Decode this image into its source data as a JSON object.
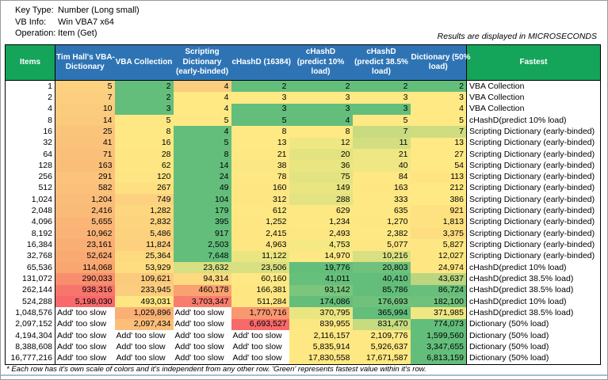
{
  "meta": {
    "key_type_label": "Key Type:",
    "key_type_value": "Number (Long small)",
    "vb_info_label": "VB Info:",
    "vb_info_value": "Win VBA7 x64",
    "operation_label": "Operation:",
    "operation_value": "Item (Get)",
    "units_note": "Results are displayed in MICROSECONDS"
  },
  "footnote": "* Each row has it's own scale of colors and it's independent from any other row. 'Green' represents fastest value within it's row.",
  "colors": {
    "header_green": "#14A45A",
    "header_blue": "#2E74B5",
    "scale_green": "#63BE7B",
    "scale_yellow": "#FFE984",
    "scale_red": "#F8696B"
  },
  "table": {
    "header": [
      {
        "id": "items",
        "style": "green",
        "lines": [
          "Items"
        ]
      },
      {
        "id": "tim",
        "style": "blue",
        "lines": [
          "Tim Hall's VBA-",
          "Dictionary"
        ]
      },
      {
        "id": "vba",
        "style": "blue",
        "lines": [
          "VBA Collection"
        ]
      },
      {
        "id": "scripting",
        "style": "blue",
        "lines": [
          "Scripting",
          "Dictionary",
          "(early-binded)"
        ]
      },
      {
        "id": "chashd16384",
        "style": "blue",
        "lines": [
          "cHashD (16384)"
        ]
      },
      {
        "id": "predict10",
        "style": "blue",
        "lines": [
          "cHashD",
          "(predict 10%",
          "load)"
        ]
      },
      {
        "id": "predict385",
        "style": "blue",
        "lines": [
          "cHashD",
          "(predict 38.5%",
          "load)"
        ]
      },
      {
        "id": "dict50",
        "style": "blue",
        "lines": [
          "Dictionary (50%",
          "load)"
        ]
      },
      {
        "id": "fastest",
        "style": "green",
        "lines": [
          "Fastest"
        ]
      }
    ],
    "rows": [
      {
        "items": "1",
        "values": [
          "5",
          "2",
          "4",
          "2",
          "2",
          "2",
          "2"
        ],
        "colors": [
          "#FCD180",
          "#63BE7B",
          "#FBCD7E",
          "#63BE7B",
          "#63BE7B",
          "#63BE7B",
          "#63BE7B"
        ],
        "fastest": "VBA Collection"
      },
      {
        "items": "2",
        "values": [
          "7",
          "2",
          "4",
          "3",
          "3",
          "3",
          "3"
        ],
        "colors": [
          "#FCCE7F",
          "#63BE7B",
          "#FEE983",
          "#FFE984",
          "#FFE984",
          "#FFE984",
          "#FFE984"
        ],
        "fastest": "VBA Collection"
      },
      {
        "items": "4",
        "values": [
          "10",
          "3",
          "4",
          "3",
          "3",
          "3",
          "4"
        ],
        "colors": [
          "#FBCC7E",
          "#63BE7B",
          "#FEE983",
          "#63BE7B",
          "#63BE7B",
          "#63BE7B",
          "#FFE984"
        ],
        "fastest": "VBA Collection"
      },
      {
        "items": "8",
        "values": [
          "14",
          "5",
          "5",
          "5",
          "4",
          "5",
          "5"
        ],
        "colors": [
          "#FBCA7D",
          "#FEE883",
          "#FEE883",
          "#63BE7B",
          "#63BE7B",
          "#FFE984",
          "#FFE984"
        ],
        "fastest": "cHashD(predict 10% load)"
      },
      {
        "items": "16",
        "values": [
          "25",
          "8",
          "4",
          "8",
          "8",
          "7",
          "7"
        ],
        "colors": [
          "#FAC47B",
          "#FEE883",
          "#63BE7B",
          "#FFE984",
          "#FFE984",
          "#C9DB80",
          "#CFDC80"
        ],
        "fastest": "Scripting Dictionary (early-binded)"
      },
      {
        "items": "32",
        "values": [
          "41",
          "16",
          "5",
          "13",
          "12",
          "11",
          "13"
        ],
        "colors": [
          "#FAC27B",
          "#FEE883",
          "#63BE7B",
          "#FFE984",
          "#EFE783",
          "#D3DE81",
          "#FFE984"
        ],
        "fastest": "Scripting Dictionary (early-binded)"
      },
      {
        "items": "64",
        "values": [
          "71",
          "28",
          "8",
          "21",
          "20",
          "21",
          "27"
        ],
        "colors": [
          "#FAC07A",
          "#FEE783",
          "#63BE7B",
          "#FEE883",
          "#E3E382",
          "#EFE783",
          "#FFE984"
        ],
        "fastest": "Scripting Dictionary (early-binded)"
      },
      {
        "items": "128",
        "values": [
          "163",
          "62",
          "14",
          "38",
          "36",
          "40",
          "54"
        ],
        "colors": [
          "#FABE79",
          "#FEE783",
          "#63BE7B",
          "#FBE783",
          "#E9E682",
          "#EFE783",
          "#FFE984"
        ],
        "fastest": "Scripting Dictionary (early-binded)"
      },
      {
        "items": "256",
        "values": [
          "291",
          "120",
          "24",
          "78",
          "75",
          "84",
          "113"
        ],
        "colors": [
          "#FBC37B",
          "#FEE583",
          "#63BE7B",
          "#FEE883",
          "#E3E382",
          "#FEE883",
          "#FEE582"
        ],
        "fastest": "Scripting Dictionary (early-binded)"
      },
      {
        "items": "512",
        "values": [
          "582",
          "267",
          "49",
          "160",
          "149",
          "163",
          "212"
        ],
        "colors": [
          "#FBC07A",
          "#FEDF81",
          "#63BE7B",
          "#FEE783",
          "#E9E682",
          "#FEE783",
          "#FFE984"
        ],
        "fastest": "Scripting Dictionary (early-binded)"
      },
      {
        "items": "1,024",
        "values": [
          "1,204",
          "749",
          "104",
          "312",
          "288",
          "333",
          "386"
        ],
        "colors": [
          "#FABD79",
          "#FCD17F",
          "#63BE7B",
          "#FEE783",
          "#E3E382",
          "#FEE883",
          "#FFE984"
        ],
        "fastest": "Scripting Dictionary (early-binded)"
      },
      {
        "items": "2,048",
        "values": [
          "2,416",
          "1,282",
          "179",
          "612",
          "629",
          "635",
          "921"
        ],
        "colors": [
          "#FABA78",
          "#FDD67F",
          "#63BE7B",
          "#FEE883",
          "#FEE883",
          "#FEE883",
          "#FEE181"
        ],
        "fastest": "Scripting Dictionary (early-binded)"
      },
      {
        "items": "4,096",
        "values": [
          "5,655",
          "2,832",
          "395",
          "1,252",
          "1,234",
          "1,270",
          "1,813"
        ],
        "colors": [
          "#FAB577",
          "#FCD37F",
          "#63BE7B",
          "#FEE783",
          "#FEE883",
          "#FEE783",
          "#FEE181"
        ],
        "fastest": "Scripting Dictionary (early-binded)"
      },
      {
        "items": "8,192",
        "values": [
          "10,962",
          "5,486",
          "917",
          "2,415",
          "2,493",
          "2,382",
          "3,375"
        ],
        "colors": [
          "#FAB276",
          "#FCD27F",
          "#63BE7B",
          "#FEE783",
          "#FEE683",
          "#FEE883",
          "#FEDD80"
        ],
        "fastest": "Scripting Dictionary (early-binded)"
      },
      {
        "items": "16,384",
        "values": [
          "23,161",
          "11,824",
          "2,503",
          "4,963",
          "4,753",
          "5,077",
          "5,827"
        ],
        "colors": [
          "#F9AE74",
          "#FCD07E",
          "#63BE7B",
          "#FEE683",
          "#F4E983",
          "#FEE783",
          "#FEE783"
        ],
        "fastest": "Scripting Dictionary (early-binded)"
      },
      {
        "items": "32,768",
        "values": [
          "52,624",
          "25,364",
          "7,648",
          "11,122",
          "14,970",
          "10,216",
          "12,027"
        ],
        "colors": [
          "#F9AA73",
          "#FDD980",
          "#63BE7B",
          "#E9E682",
          "#FEE883",
          "#D8E081",
          "#FEE783"
        ],
        "fastest": "Scripting Dictionary (early-binded)"
      },
      {
        "items": "65,536",
        "values": [
          "114,068",
          "53,929",
          "23,632",
          "23,506",
          "19,776",
          "20,803",
          "24,974"
        ],
        "colors": [
          "#F9A671",
          "#FDDD80",
          "#D8E081",
          "#D8E081",
          "#63BE7B",
          "#6FC17B",
          "#FEE783"
        ],
        "fastest": "cHashD(predict 10% load)"
      },
      {
        "items": "131,072",
        "values": [
          "290,033",
          "109,621",
          "94,314",
          "60,160",
          "41,011",
          "40,410",
          "43,637"
        ],
        "colors": [
          "#F78E6E",
          "#FBCA7D",
          "#FDD980",
          "#FEE883",
          "#66BF7B",
          "#63BE7B",
          "#BBD67F"
        ],
        "fastest": "cHashD(predict 38.5% load)"
      },
      {
        "items": "262,144",
        "values": [
          "938,316",
          "233,945",
          "460,178",
          "166,381",
          "93,142",
          "85,786",
          "86,724"
        ],
        "colors": [
          "#F8756C",
          "#FBCD7E",
          "#F9A170",
          "#FEE783",
          "#7BC57C",
          "#63BE7B",
          "#68BF7B"
        ],
        "fastest": "cHashD(predict 38.5% load)"
      },
      {
        "items": "524,288",
        "values": [
          "5,198,030",
          "493,031",
          "3,703,347",
          "511,284",
          "174,086",
          "176,693",
          "182,100"
        ],
        "colors": [
          "#F8696B",
          "#FEE682",
          "#F87D6D",
          "#FEE783",
          "#63BE7B",
          "#6FC17B",
          "#6FC17B"
        ],
        "fastest": "cHashD(predict 10% load)"
      },
      {
        "items": "1,048,576",
        "values": [
          "Add' too slow",
          "1,029,896",
          "Add' too slow",
          "1,770,716",
          "370,795",
          "365,994",
          "371,985"
        ],
        "colors": [
          "#FFFFFF",
          "#FAB074",
          "#FFFFFF",
          "#F9976F",
          "#E9E682",
          "#63BE7B",
          "#F0E783"
        ],
        "fastest": "cHashD(predict 38.5% load)"
      },
      {
        "items": "2,097,152",
        "values": [
          "Add' too slow",
          "2,097,434",
          "Add' too slow",
          "6,693,527",
          "839,955",
          "831,470",
          "774,073"
        ],
        "colors": [
          "#FFFFFF",
          "#FBBF7A",
          "#FFFFFF",
          "#F8696B",
          "#FCE883",
          "#C7DB80",
          "#63BE7B"
        ],
        "fastest": "Dictionary (50% load)"
      },
      {
        "items": "4,194,304",
        "values": [
          "Add' too slow",
          "Add' too slow",
          "Add' too slow",
          "Add' too slow",
          "2,116,157",
          "2,109,776",
          "1,599,560"
        ],
        "colors": [
          "#FFFFFF",
          "#FFFFFF",
          "#FFFFFF",
          "#FFFFFF",
          "#FEE883",
          "#FEE883",
          "#63BE7B"
        ],
        "fastest": "Dictionary (50% load)"
      },
      {
        "items": "8,388,608",
        "values": [
          "Add' too slow",
          "Add' too slow",
          "Add' too slow",
          "Add' too slow",
          "5,835,914",
          "5,926,637",
          "3,347,655"
        ],
        "colors": [
          "#FFFFFF",
          "#FFFFFF",
          "#FFFFFF",
          "#FFFFFF",
          "#FEE883",
          "#FEE883",
          "#63BE7B"
        ],
        "fastest": "Dictionary (50% load)"
      },
      {
        "items": "16,777,216",
        "values": [
          "Add' too slow",
          "Add' too slow",
          "Add' too slow",
          "Add' too slow",
          "17,830,558",
          "17,671,587",
          "6,813,159"
        ],
        "colors": [
          "#FFFFFF",
          "#FFFFFF",
          "#FFFFFF",
          "#FFFFFF",
          "#FEE883",
          "#FEE883",
          "#63BE7B"
        ],
        "fastest": "Dictionary (50% load)"
      }
    ]
  }
}
